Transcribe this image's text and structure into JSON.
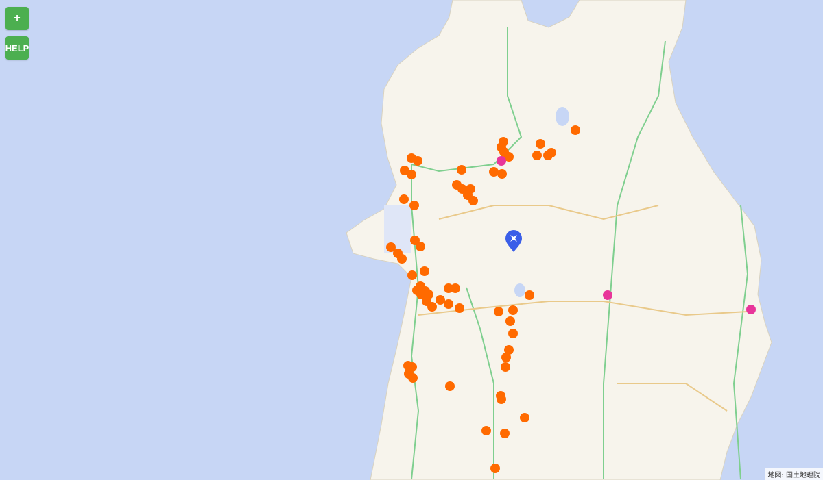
{
  "controls": {
    "zoom_in_label": "+",
    "help_label": "HELP"
  },
  "attribution": "地図: 国土地理院",
  "colors": {
    "sea": "#c7d6f5",
    "land": "#f7f4ec",
    "point_orange": "#ff6a00",
    "point_pink": "#e8359a",
    "current_marker": "#3b5ee8",
    "button": "#4caf50"
  },
  "icons": {
    "current_location": "location-pin-icon"
  }
}
